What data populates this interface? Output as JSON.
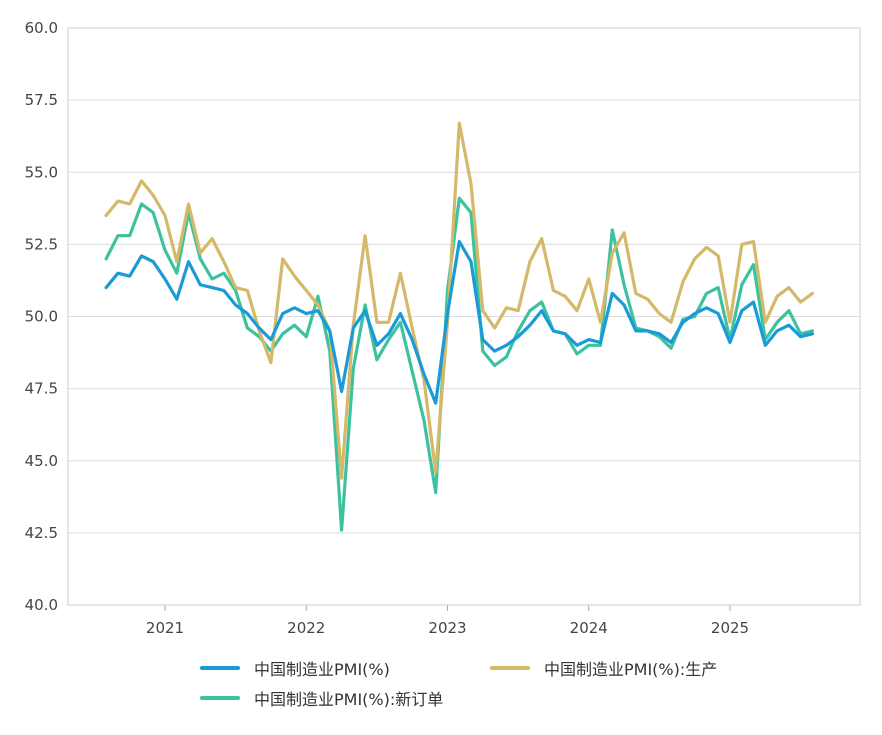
{
  "chart_data": {
    "type": "line",
    "title": "",
    "xlabel": "",
    "ylabel": "",
    "ylim": [
      40.0,
      60.0
    ],
    "y_ticks": [
      "40.0",
      "42.5",
      "45.0",
      "47.5",
      "50.0",
      "52.5",
      "55.0",
      "57.5",
      "60.0"
    ],
    "x_ticks": [
      "2021",
      "2022",
      "2023",
      "2024",
      "2025"
    ],
    "grid": "horizontal",
    "legend_position": "bottom",
    "x": [
      "2020-08",
      "2020-09",
      "2020-10",
      "2020-11",
      "2020-12",
      "2021-01",
      "2021-02",
      "2021-03",
      "2021-04",
      "2021-05",
      "2021-06",
      "2021-07",
      "2021-08",
      "2021-09",
      "2021-10",
      "2021-11",
      "2021-12",
      "2022-01",
      "2022-02",
      "2022-03",
      "2022-04",
      "2022-05",
      "2022-06",
      "2022-07",
      "2022-08",
      "2022-09",
      "2022-10",
      "2022-11",
      "2022-12",
      "2023-01",
      "2023-02",
      "2023-03",
      "2023-04",
      "2023-05",
      "2023-06",
      "2023-07",
      "2023-08",
      "2023-09",
      "2023-10",
      "2023-11",
      "2023-12",
      "2024-01",
      "2024-02",
      "2024-03",
      "2024-04",
      "2024-05",
      "2024-06",
      "2024-07",
      "2024-08",
      "2024-09",
      "2024-10",
      "2024-11",
      "2024-12",
      "2025-01",
      "2025-02",
      "2025-03",
      "2025-04",
      "2025-05",
      "2025-06",
      "2025-07",
      "2025-08"
    ],
    "series": [
      {
        "name": "中国制造业PMI(%)",
        "color": "#1a9bd7",
        "values": [
          51.0,
          51.5,
          51.4,
          52.1,
          51.9,
          51.3,
          50.6,
          51.9,
          51.1,
          51.0,
          50.9,
          50.4,
          50.1,
          49.6,
          49.2,
          50.1,
          50.3,
          50.1,
          50.2,
          49.5,
          47.4,
          49.6,
          50.2,
          49.0,
          49.4,
          50.1,
          49.2,
          48.0,
          47.0,
          50.1,
          52.6,
          51.9,
          49.2,
          48.8,
          49.0,
          49.3,
          49.7,
          50.2,
          49.5,
          49.4,
          49.0,
          49.2,
          49.1,
          50.8,
          50.4,
          49.5,
          49.5,
          49.4,
          49.1,
          49.8,
          50.1,
          50.3,
          50.1,
          49.1,
          50.2,
          50.5,
          49.0,
          49.5,
          49.7,
          49.3,
          49.4
        ]
      },
      {
        "name": "中国制造业PMI(%):生产",
        "color": "#d4b96a",
        "values": [
          53.5,
          54.0,
          53.9,
          54.7,
          54.2,
          53.5,
          51.9,
          53.9,
          52.2,
          52.7,
          51.9,
          51.0,
          50.9,
          49.5,
          48.4,
          52.0,
          51.4,
          50.9,
          50.4,
          49.5,
          44.4,
          49.7,
          52.8,
          49.8,
          49.8,
          51.5,
          49.6,
          47.8,
          44.6,
          49.8,
          56.7,
          54.6,
          50.2,
          49.6,
          50.3,
          50.2,
          51.9,
          52.7,
          50.9,
          50.7,
          50.2,
          51.3,
          49.8,
          52.2,
          52.9,
          50.8,
          50.6,
          50.1,
          49.8,
          51.2,
          52.0,
          52.4,
          52.1,
          49.8,
          52.5,
          52.6,
          49.8,
          50.7,
          51.0,
          50.5,
          50.8
        ]
      },
      {
        "name": "中国制造业PMI(%):新订单",
        "color": "#3cc29e",
        "values": [
          52.0,
          52.8,
          52.8,
          53.9,
          53.6,
          52.3,
          51.5,
          53.6,
          52.0,
          51.3,
          51.5,
          50.9,
          49.6,
          49.3,
          48.8,
          49.4,
          49.7,
          49.3,
          50.7,
          48.8,
          42.6,
          48.2,
          50.4,
          48.5,
          49.2,
          49.8,
          48.1,
          46.4,
          43.9,
          50.9,
          54.1,
          53.6,
          48.8,
          48.3,
          48.6,
          49.5,
          50.2,
          50.5,
          49.5,
          49.4,
          48.7,
          49.0,
          49.0,
          53.0,
          51.1,
          49.6,
          49.5,
          49.3,
          48.9,
          49.9,
          50.0,
          50.8,
          51.0,
          49.2,
          51.1,
          51.8,
          49.2,
          49.8,
          50.2,
          49.4,
          49.5
        ]
      }
    ]
  }
}
